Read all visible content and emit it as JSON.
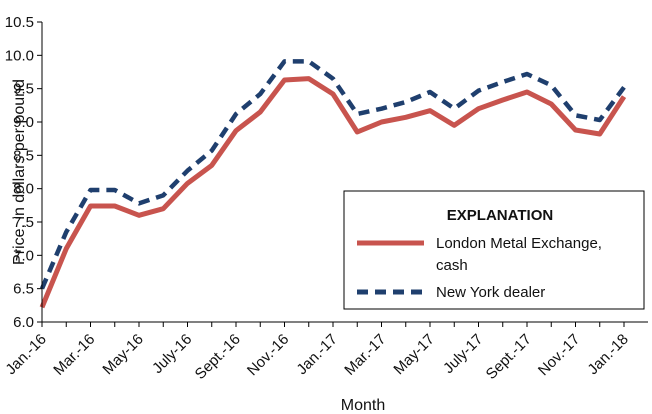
{
  "chart_data": {
    "type": "line",
    "xlabel": "Month",
    "ylabel": "Price, in dollars per pound",
    "ylim": [
      6.0,
      10.5
    ],
    "yticks": [
      "6.0",
      "6.5",
      "7.0",
      "7.5",
      "8.0",
      "8.5",
      "9.0",
      "9.5",
      "10.0",
      "10.5"
    ],
    "x": [
      "Jan.-16",
      "Feb.-16",
      "Mar.-16",
      "Apr.-16",
      "May-16",
      "June-16",
      "July-16",
      "Aug.-16",
      "Sept.-16",
      "Oct.-16",
      "Nov.-16",
      "Dec.-16",
      "Jan.-17",
      "Feb.-17",
      "Mar.-17",
      "Apr.-17",
      "May-17",
      "June-17",
      "July-17",
      "Aug.-17",
      "Sept.-17",
      "Oct.-17",
      "Nov.-17",
      "Dec.-17",
      "Jan.-18"
    ],
    "xtick_labels": [
      "Jan.-16",
      "Mar.-16",
      "May-16",
      "July-16",
      "Sept.-16",
      "Nov.-16",
      "Jan.-17",
      "Mar.-17",
      "May-17",
      "July-17",
      "Sept.-17",
      "Nov.-17",
      "Jan.-18"
    ],
    "grid": false,
    "legend": {
      "title": "EXPLANATION",
      "placement": "bottom-right"
    },
    "series": [
      {
        "name": "London Metal Exchange, cash",
        "legend_lines": [
          "London Metal Exchange,",
          "cash"
        ],
        "color": "#c8544e",
        "style": "solid",
        "values": [
          6.22,
          7.1,
          7.74,
          7.74,
          7.6,
          7.7,
          8.08,
          8.35,
          8.87,
          9.15,
          9.63,
          9.65,
          9.42,
          8.85,
          9.0,
          9.07,
          9.17,
          8.95,
          9.2,
          9.33,
          9.45,
          9.27,
          8.88,
          8.82,
          9.38
        ]
      },
      {
        "name": "New York dealer",
        "legend_lines": [
          "New York dealer"
        ],
        "color": "#1f3f6e",
        "style": "dashed",
        "values": [
          6.5,
          7.35,
          7.98,
          7.98,
          7.78,
          7.9,
          8.27,
          8.57,
          9.12,
          9.42,
          9.91,
          9.91,
          9.65,
          9.12,
          9.2,
          9.3,
          9.45,
          9.2,
          9.47,
          9.6,
          9.72,
          9.55,
          9.1,
          9.03,
          9.52
        ]
      }
    ]
  }
}
